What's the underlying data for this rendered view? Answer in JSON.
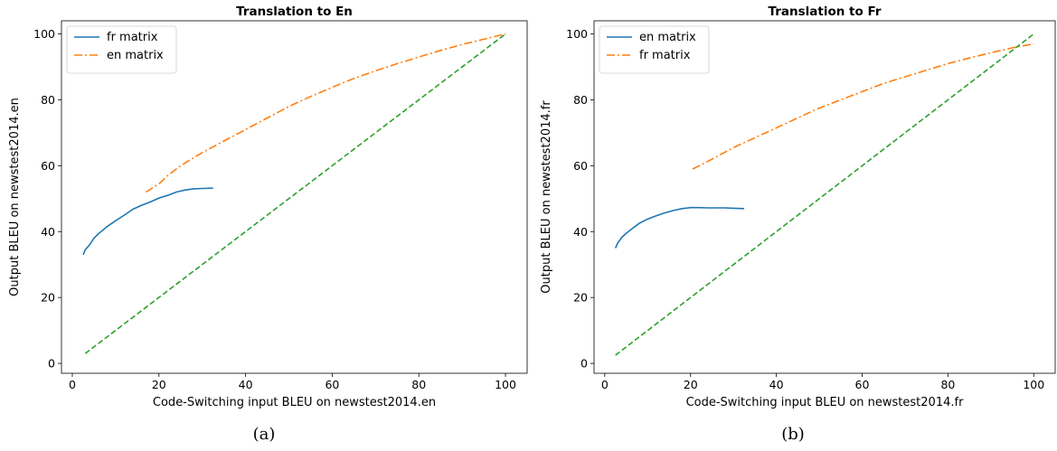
{
  "chart_data": [
    {
      "type": "line",
      "title": "Translation to En",
      "xlabel": "Code-Switching input BLEU on newstest2014.en",
      "ylabel": "Output BLEU on newstest2014.en",
      "xlim": [
        -2.5,
        105
      ],
      "ylim": [
        -3,
        104
      ],
      "xticks": [
        0,
        20,
        40,
        60,
        80,
        100
      ],
      "yticks": [
        0,
        20,
        40,
        60,
        80,
        100
      ],
      "grid": false,
      "legend_position": "upper-left",
      "caption": "(a)",
      "series": [
        {
          "name": "fr matrix",
          "color": "#1f77b4",
          "style": "solid",
          "x": [
            2.5,
            3,
            4,
            5,
            6,
            8,
            10,
            12,
            14,
            16,
            18,
            20,
            22,
            24,
            26,
            28,
            30,
            32.5
          ],
          "y": [
            33,
            34.5,
            36,
            38,
            39.3,
            41.5,
            43.3,
            45,
            46.8,
            48,
            49,
            50.2,
            51,
            52,
            52.6,
            53,
            53.1,
            53.2
          ]
        },
        {
          "name": "en matrix",
          "color": "#ff7f0e",
          "style": "dashdot",
          "x": [
            17,
            20,
            22,
            25,
            30,
            35,
            40,
            45,
            50,
            55,
            60,
            65,
            70,
            75,
            80,
            85,
            90,
            95,
            100
          ],
          "y": [
            52,
            54.5,
            57,
            60,
            64,
            67.5,
            71,
            74.5,
            78,
            81,
            83.8,
            86.5,
            88.8,
            91,
            93,
            95,
            96.8,
            98.4,
            100
          ]
        },
        {
          "name": "",
          "color": "#2ca02c",
          "style": "dashed",
          "x": [
            3,
            100
          ],
          "y": [
            3,
            100
          ]
        }
      ]
    },
    {
      "type": "line",
      "title": "Translation to Fr",
      "xlabel": "Code-Switching input BLEU on newstest2014.fr",
      "ylabel": "Output BLEU on newstest2014.fr",
      "xlim": [
        -2.5,
        105
      ],
      "ylim": [
        -3,
        104
      ],
      "xticks": [
        0,
        20,
        40,
        60,
        80,
        100
      ],
      "yticks": [
        0,
        20,
        40,
        60,
        80,
        100
      ],
      "grid": false,
      "legend_position": "upper-left",
      "caption": "(b)",
      "series": [
        {
          "name": "en matrix",
          "color": "#1f77b4",
          "style": "solid",
          "x": [
            2.5,
            3,
            4,
            5,
            6,
            8,
            10,
            12,
            14,
            16,
            18,
            20,
            22,
            24,
            26,
            28,
            30,
            32.5
          ],
          "y": [
            35,
            36.5,
            38.3,
            39.5,
            40.5,
            42.5,
            43.8,
            44.8,
            45.7,
            46.4,
            47,
            47.3,
            47.3,
            47.2,
            47.2,
            47.2,
            47.1,
            47
          ]
        },
        {
          "name": "fr matrix",
          "color": "#ff7f0e",
          "style": "dashdot",
          "x": [
            20.5,
            25,
            30,
            35,
            40,
            45,
            50,
            55,
            60,
            65,
            70,
            75,
            80,
            85,
            90,
            95,
            100
          ],
          "y": [
            59,
            62,
            65.5,
            68.5,
            71.5,
            74.5,
            77.5,
            80,
            82.5,
            85,
            87,
            89,
            91,
            92.7,
            94.3,
            95.8,
            97
          ]
        },
        {
          "name": "",
          "color": "#2ca02c",
          "style": "dashed",
          "x": [
            2.5,
            100
          ],
          "y": [
            2.5,
            100
          ]
        }
      ]
    }
  ]
}
